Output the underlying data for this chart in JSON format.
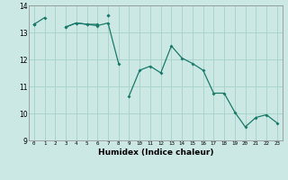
{
  "title": "",
  "xlabel": "Humidex (Indice chaleur)",
  "bg_color": "#cce8e4",
  "grid_color": "#aad4cc",
  "line_color": "#1a7a6a",
  "xlim": [
    -0.5,
    23.5
  ],
  "ylim": [
    9,
    14
  ],
  "xticks": [
    0,
    1,
    2,
    3,
    4,
    5,
    6,
    7,
    8,
    9,
    10,
    11,
    12,
    13,
    14,
    15,
    16,
    17,
    18,
    19,
    20,
    21,
    22,
    23
  ],
  "yticks": [
    9,
    10,
    11,
    12,
    13,
    14
  ],
  "series": [
    [
      13.3,
      13.55,
      null,
      13.2,
      13.35,
      13.3,
      13.3,
      null,
      null,
      null,
      null,
      null,
      null,
      null,
      null,
      null,
      null,
      null,
      null,
      null,
      null,
      null,
      null,
      null
    ],
    [
      13.3,
      null,
      null,
      13.2,
      13.35,
      13.3,
      13.25,
      13.35,
      11.85,
      null,
      null,
      null,
      null,
      null,
      null,
      null,
      null,
      null,
      null,
      null,
      null,
      null,
      null,
      null
    ],
    [
      13.3,
      null,
      null,
      null,
      null,
      null,
      null,
      13.65,
      null,
      null,
      null,
      null,
      null,
      null,
      null,
      null,
      null,
      null,
      null,
      null,
      null,
      null,
      null,
      null
    ],
    [
      null,
      null,
      null,
      null,
      null,
      null,
      null,
      13.65,
      null,
      10.65,
      11.6,
      11.75,
      11.5,
      12.5,
      12.05,
      11.85,
      11.6,
      10.75,
      10.75,
      10.05,
      9.5,
      9.85,
      9.95,
      9.65
    ]
  ]
}
